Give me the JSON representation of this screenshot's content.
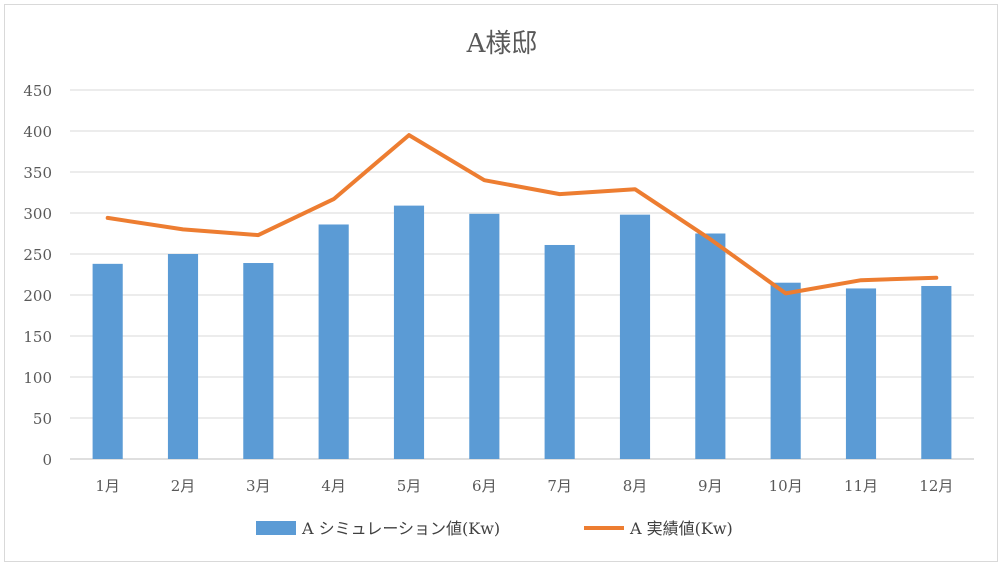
{
  "chart_data": {
    "type": "bar",
    "title": "A様邸",
    "categories": [
      "1月",
      "2月",
      "3月",
      "4月",
      "5月",
      "6月",
      "7月",
      "8月",
      "9月",
      "10月",
      "11月",
      "12月"
    ],
    "series": [
      {
        "name": "A シミュレーション値(Kw)",
        "type": "bar",
        "color": "#5b9bd5",
        "values": [
          238,
          250,
          239,
          286,
          309,
          299,
          261,
          298,
          275,
          215,
          208,
          211
        ]
      },
      {
        "name": "A 実績値(Kw)",
        "type": "line",
        "color": "#ed7d31",
        "values": [
          294,
          280,
          273,
          317,
          395,
          340,
          323,
          329,
          268,
          202,
          218,
          221
        ]
      }
    ],
    "ylim": [
      0,
      450
    ],
    "yticks": [
      0,
      50,
      100,
      150,
      200,
      250,
      300,
      350,
      400,
      450
    ],
    "xlabel": "",
    "ylabel": "",
    "grid": true,
    "legend_position": "bottom"
  }
}
